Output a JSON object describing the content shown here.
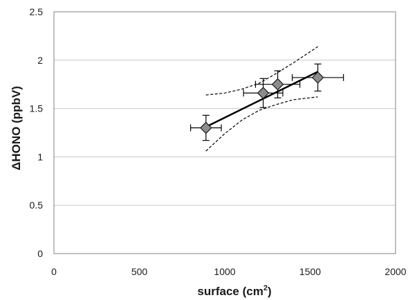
{
  "chart_data": {
    "type": "scatter",
    "xlabel": "surface (cm",
    "xlabel_sup": "2",
    "xlabel_end": ")",
    "ylabel": "ΔHONO (ppbV)",
    "xlim": [
      0,
      2000
    ],
    "ylim": [
      0,
      2.5
    ],
    "x_ticks": [
      0,
      500,
      1000,
      1500,
      2000
    ],
    "y_ticks": [
      0,
      0.5,
      1,
      1.5,
      2,
      2.5
    ],
    "x_tick_labels": [
      "0",
      "500",
      "1000",
      "1500",
      "2000"
    ],
    "y_tick_labels": [
      "0",
      "0.5",
      "1",
      "1.5",
      "2",
      "2.5"
    ],
    "grid": "horizontal",
    "points": [
      {
        "x": 890,
        "y": 1.3,
        "xerr": 90,
        "yerr": 0.13
      },
      {
        "x": 1225,
        "y": 1.66,
        "xerr": 115,
        "yerr": 0.15
      },
      {
        "x": 1310,
        "y": 1.75,
        "xerr": 130,
        "yerr": 0.14
      },
      {
        "x": 1545,
        "y": 1.82,
        "xerr": 150,
        "yerr": 0.14
      }
    ],
    "fit_line": {
      "x": [
        890,
        1545
      ],
      "y": [
        1.31,
        1.88
      ]
    },
    "confidence_upper": {
      "x": [
        890,
        1000,
        1100,
        1200,
        1300,
        1400,
        1545
      ],
      "y": [
        1.64,
        1.66,
        1.7,
        1.76,
        1.86,
        1.97,
        2.14
      ]
    },
    "confidence_lower": {
      "x": [
        890,
        1000,
        1100,
        1200,
        1300,
        1400,
        1545
      ],
      "y": [
        1.06,
        1.24,
        1.38,
        1.48,
        1.54,
        1.59,
        1.62
      ]
    },
    "colors": {
      "marker_fill": "#8c8c8c",
      "marker_edge": "#1a1a1a",
      "line": "#000000",
      "grid": "#c8c8c8"
    }
  }
}
